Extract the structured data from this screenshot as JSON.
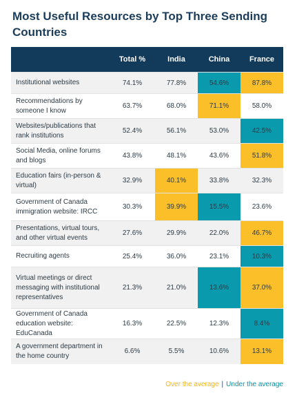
{
  "title": "Most Useful Resources by Top Three Sending Countries",
  "headers": [
    "",
    "Total %",
    "India",
    "China",
    "France"
  ],
  "rows": [
    {
      "label": "Institutional websites",
      "values": [
        "74.1%",
        "77.8%",
        "54.6%",
        "87.8%"
      ],
      "hl": [
        "",
        "",
        "under",
        "over"
      ]
    },
    {
      "label": "Recommendations by someone I know",
      "values": [
        "63.7%",
        "68.0%",
        "71.1%",
        "58.0%"
      ],
      "hl": [
        "",
        "",
        "over",
        ""
      ]
    },
    {
      "label": "Websites/publications that rank institutions",
      "values": [
        "52.4%",
        "56.1%",
        "53.0%",
        "42.5%"
      ],
      "hl": [
        "",
        "",
        "",
        "under"
      ]
    },
    {
      "label": "Social Media, online forums and blogs",
      "values": [
        "43.8%",
        "48.1%",
        "43.6%",
        "51.8%"
      ],
      "hl": [
        "",
        "",
        "",
        "over"
      ]
    },
    {
      "label": "Education fairs (in-person & virtual)",
      "values": [
        "32.9%",
        "40.1%",
        "33.8%",
        "32.3%"
      ],
      "hl": [
        "",
        "over",
        "",
        ""
      ]
    },
    {
      "label": "Government of Canada immigration website: IRCC",
      "values": [
        "30.3%",
        "39.9%",
        "15.5%",
        "23.6%"
      ],
      "hl": [
        "",
        "over",
        "under",
        ""
      ]
    },
    {
      "label": "Presentations, virtual tours, and other virtual events",
      "values": [
        "27.6%",
        "29.9%",
        "22.0%",
        "46.7%"
      ],
      "hl": [
        "",
        "",
        "",
        "over"
      ]
    },
    {
      "label": "Recruiting agents",
      "values": [
        "25.4%",
        "36.0%",
        "23.1%",
        "10.3%"
      ],
      "hl": [
        "",
        "",
        "",
        "under"
      ]
    },
    {
      "label": "Virtual meetings or direct messaging with institutional representatives",
      "values": [
        "21.3%",
        "21.0%",
        "13.6%",
        "37.0%"
      ],
      "hl": [
        "",
        "",
        "under",
        "over"
      ]
    },
    {
      "label": "Government of Canada education website: EduCanada",
      "values": [
        "16.3%",
        "22.5%",
        "12.3%",
        "8.4%"
      ],
      "hl": [
        "",
        "",
        "",
        "under"
      ]
    },
    {
      "label": "A government department in the home country",
      "values": [
        "6.6%",
        "5.5%",
        "10.6%",
        "13.1%"
      ],
      "hl": [
        "",
        "",
        "",
        "over"
      ]
    }
  ],
  "legend": {
    "over": "Over the average",
    "separator": "|",
    "under": "Under the average"
  },
  "colors": {
    "header": "#123a5a",
    "over": "#fbbf2a",
    "under": "#0a9aad",
    "title": "#1c3d5a"
  }
}
